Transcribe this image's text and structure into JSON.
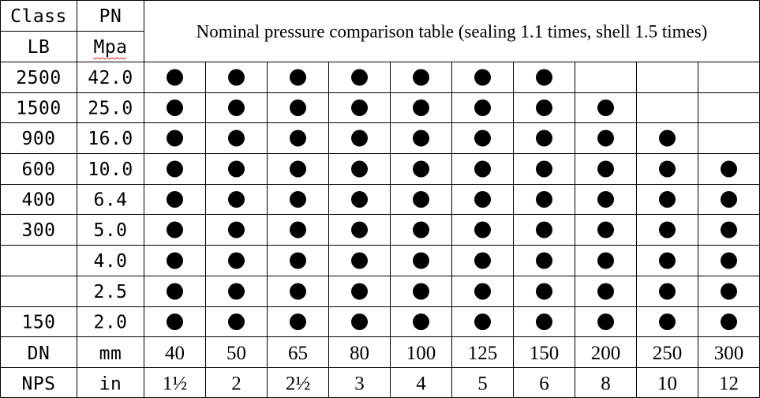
{
  "table": {
    "title": "Nominal pressure comparison table (sealing 1.1 times, shell 1.5 times)",
    "header_left": {
      "class_label": "Class",
      "pn_label": "PN",
      "lb_label": "LB",
      "mpa_label": "Mpa"
    },
    "rows": [
      {
        "class_lb": "2500",
        "pn_mpa": "42.0",
        "marks": [
          true,
          true,
          true,
          true,
          true,
          true,
          true,
          false,
          false,
          false
        ]
      },
      {
        "class_lb": "1500",
        "pn_mpa": "25.0",
        "marks": [
          true,
          true,
          true,
          true,
          true,
          true,
          true,
          true,
          false,
          false
        ]
      },
      {
        "class_lb": "900",
        "pn_mpa": "16.0",
        "marks": [
          true,
          true,
          true,
          true,
          true,
          true,
          true,
          true,
          true,
          false
        ]
      },
      {
        "class_lb": "600",
        "pn_mpa": "10.0",
        "marks": [
          true,
          true,
          true,
          true,
          true,
          true,
          true,
          true,
          true,
          true
        ]
      },
      {
        "class_lb": "400",
        "pn_mpa": "6.4",
        "marks": [
          true,
          true,
          true,
          true,
          true,
          true,
          true,
          true,
          true,
          true
        ]
      },
      {
        "class_lb": "300",
        "pn_mpa": "5.0",
        "marks": [
          true,
          true,
          true,
          true,
          true,
          true,
          true,
          true,
          true,
          true
        ]
      },
      {
        "class_lb": "",
        "pn_mpa": "4.0",
        "marks": [
          true,
          true,
          true,
          true,
          true,
          true,
          true,
          true,
          true,
          true
        ]
      },
      {
        "class_lb": "",
        "pn_mpa": "2.5",
        "marks": [
          true,
          true,
          true,
          true,
          true,
          true,
          true,
          true,
          true,
          true
        ]
      },
      {
        "class_lb": "150",
        "pn_mpa": "2.0",
        "marks": [
          true,
          true,
          true,
          true,
          true,
          true,
          true,
          true,
          true,
          true
        ]
      }
    ],
    "dn_row": {
      "label": "DN",
      "unit": "mm",
      "values": [
        "40",
        "50",
        "65",
        "80",
        "100",
        "125",
        "150",
        "200",
        "250",
        "300"
      ]
    },
    "nps_row": {
      "label": "NPS",
      "unit": "in",
      "values": [
        "1½",
        "2",
        "2½",
        "3",
        "4",
        "5",
        "6",
        "8",
        "10",
        "12"
      ]
    }
  }
}
